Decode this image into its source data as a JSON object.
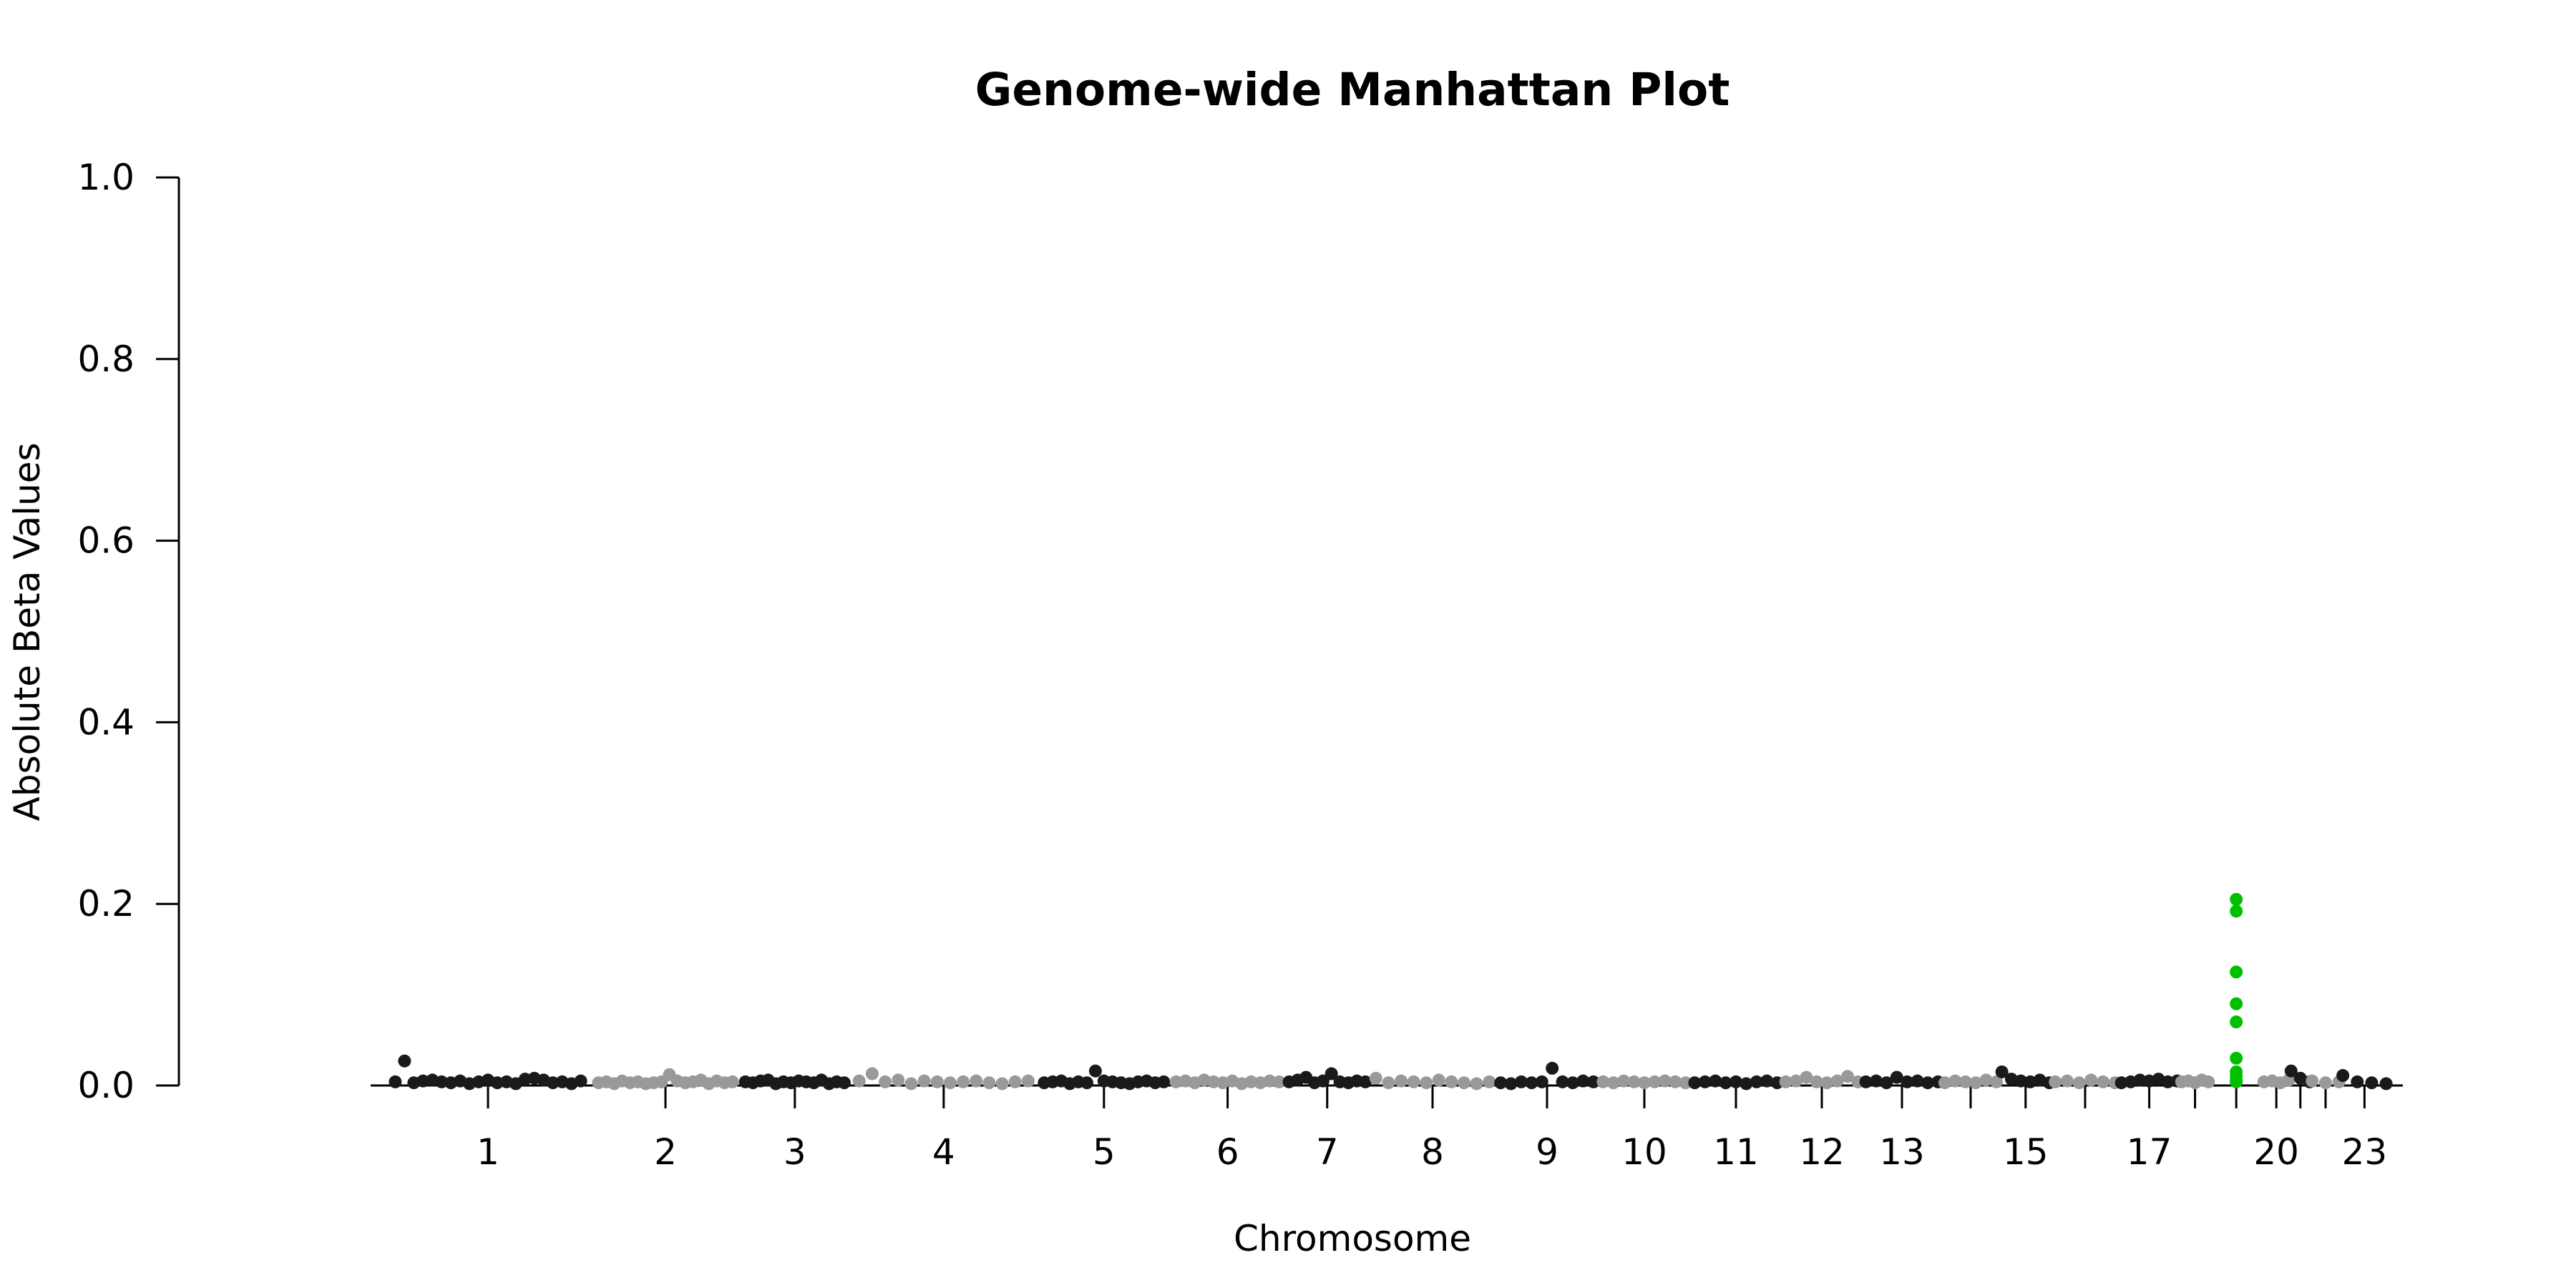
{
  "chart_data": {
    "type": "scatter",
    "title": "Genome-wide Manhattan Plot",
    "xlabel": "Chromosome",
    "ylabel": "Absolute Beta Values",
    "ylim": [
      0,
      1.0
    ],
    "y_ticks": [
      "0.0",
      "0.2",
      "0.4",
      "0.6",
      "0.8",
      "1.0"
    ],
    "x_ticks": [
      "1",
      "2",
      "3",
      "4",
      "5",
      "6",
      "7",
      "8",
      "9",
      "10",
      "11",
      "12",
      "13",
      "15",
      "17",
      "20",
      "23"
    ],
    "unlabeled_tick_chromosomes": [
      "14",
      "16",
      "18",
      "19",
      "21",
      "22"
    ],
    "grid": false,
    "legend": "none",
    "colors": {
      "odd_chromosome": "#1a1a1a",
      "even_chromosome": "#999999",
      "highlight": "#00c000"
    },
    "chromosomes": [
      {
        "chr": "1",
        "xrange": [
          0.09,
          0.18
        ],
        "values": [
          0.004,
          0.027,
          0.003,
          0.005,
          0.006,
          0.004,
          0.003,
          0.005,
          0.002,
          0.004,
          0.006,
          0.003,
          0.004,
          0.002,
          0.007,
          0.008,
          0.006,
          0.003,
          0.004,
          0.002,
          0.005
        ]
      },
      {
        "chr": "2",
        "xrange": [
          0.18,
          0.245
        ],
        "values": [
          0.003,
          0.004,
          0.002,
          0.005,
          0.003,
          0.004,
          0.002,
          0.003,
          0.004,
          0.012,
          0.005,
          0.003,
          0.004,
          0.006,
          0.002,
          0.005,
          0.003,
          0.004
        ]
      },
      {
        "chr": "3",
        "xrange": [
          0.245,
          0.293
        ],
        "values": [
          0.004,
          0.003,
          0.005,
          0.006,
          0.002,
          0.004,
          0.003,
          0.005,
          0.004,
          0.003,
          0.006,
          0.002,
          0.004,
          0.003
        ]
      },
      {
        "chr": "4",
        "xrange": [
          0.293,
          0.375
        ],
        "values": [
          0.005,
          0.013,
          0.004,
          0.006,
          0.002,
          0.005,
          0.004,
          0.003,
          0.004,
          0.005,
          0.003,
          0.002,
          0.004,
          0.005
        ]
      },
      {
        "chr": "5",
        "xrange": [
          0.375,
          0.433
        ],
        "values": [
          0.003,
          0.004,
          0.005,
          0.002,
          0.004,
          0.003,
          0.016,
          0.005,
          0.004,
          0.003,
          0.002,
          0.004,
          0.005,
          0.003,
          0.004
        ]
      },
      {
        "chr": "6",
        "xrange": [
          0.433,
          0.483
        ],
        "values": [
          0.004,
          0.005,
          0.003,
          0.006,
          0.004,
          0.003,
          0.005,
          0.002,
          0.004,
          0.003,
          0.005,
          0.004
        ]
      },
      {
        "chr": "7",
        "xrange": [
          0.483,
          0.52
        ],
        "values": [
          0.004,
          0.006,
          0.009,
          0.003,
          0.005,
          0.013,
          0.004,
          0.003,
          0.005,
          0.004
        ]
      },
      {
        "chr": "8",
        "xrange": [
          0.52,
          0.575
        ],
        "values": [
          0.008,
          0.003,
          0.005,
          0.004,
          0.003,
          0.006,
          0.004,
          0.003,
          0.002,
          0.004
        ]
      },
      {
        "chr": "9",
        "xrange": [
          0.575,
          0.62
        ],
        "values": [
          0.003,
          0.002,
          0.004,
          0.003,
          0.004,
          0.019,
          0.004,
          0.003,
          0.005,
          0.004
        ]
      },
      {
        "chr": "10",
        "xrange": [
          0.62,
          0.66
        ],
        "values": [
          0.004,
          0.003,
          0.005,
          0.004,
          0.003,
          0.004,
          0.005,
          0.004,
          0.003
        ]
      },
      {
        "chr": "11",
        "xrange": [
          0.66,
          0.7
        ],
        "values": [
          0.003,
          0.004,
          0.005,
          0.003,
          0.004,
          0.002,
          0.004,
          0.005,
          0.003
        ]
      },
      {
        "chr": "12",
        "xrange": [
          0.7,
          0.735
        ],
        "values": [
          0.004,
          0.005,
          0.009,
          0.004,
          0.003,
          0.005,
          0.01,
          0.004
        ]
      },
      {
        "chr": "13",
        "xrange": [
          0.735,
          0.77
        ],
        "values": [
          0.004,
          0.005,
          0.003,
          0.009,
          0.004,
          0.005,
          0.003,
          0.004
        ]
      },
      {
        "chr": "14",
        "xrange": [
          0.77,
          0.795
        ],
        "values": [
          0.003,
          0.005,
          0.004,
          0.003,
          0.006,
          0.004
        ]
      },
      {
        "chr": "15",
        "xrange": [
          0.795,
          0.818
        ],
        "values": [
          0.015,
          0.007,
          0.005,
          0.004,
          0.006,
          0.003
        ]
      },
      {
        "chr": "16",
        "xrange": [
          0.818,
          0.847
        ],
        "values": [
          0.004,
          0.005,
          0.003,
          0.006,
          0.004,
          0.003
        ]
      },
      {
        "chr": "17",
        "xrange": [
          0.847,
          0.874
        ],
        "values": [
          0.003,
          0.004,
          0.006,
          0.005,
          0.007,
          0.004,
          0.005
        ]
      },
      {
        "chr": "18",
        "xrange": [
          0.874,
          0.887
        ],
        "values": [
          0.004,
          0.005,
          0.003,
          0.006,
          0.004
        ]
      },
      {
        "chr": "19",
        "xrange": [
          0.887,
          0.91
        ],
        "values": [
          0.205,
          0.192,
          0.125,
          0.09,
          0.07,
          0.03,
          0.015,
          0.01,
          0.005,
          0.004
        ],
        "highlight": true
      },
      {
        "chr": "20",
        "xrange": [
          0.91,
          0.922
        ],
        "values": [
          0.004,
          0.005,
          0.003,
          0.006
        ]
      },
      {
        "chr": "21",
        "xrange": [
          0.922,
          0.931
        ],
        "values": [
          0.016,
          0.008,
          0.004
        ]
      },
      {
        "chr": "22",
        "xrange": [
          0.931,
          0.944
        ],
        "values": [
          0.005,
          0.003,
          0.004
        ]
      },
      {
        "chr": "23",
        "xrange": [
          0.944,
          0.965
        ],
        "values": [
          0.011,
          0.004,
          0.003,
          0.002
        ]
      }
    ]
  }
}
